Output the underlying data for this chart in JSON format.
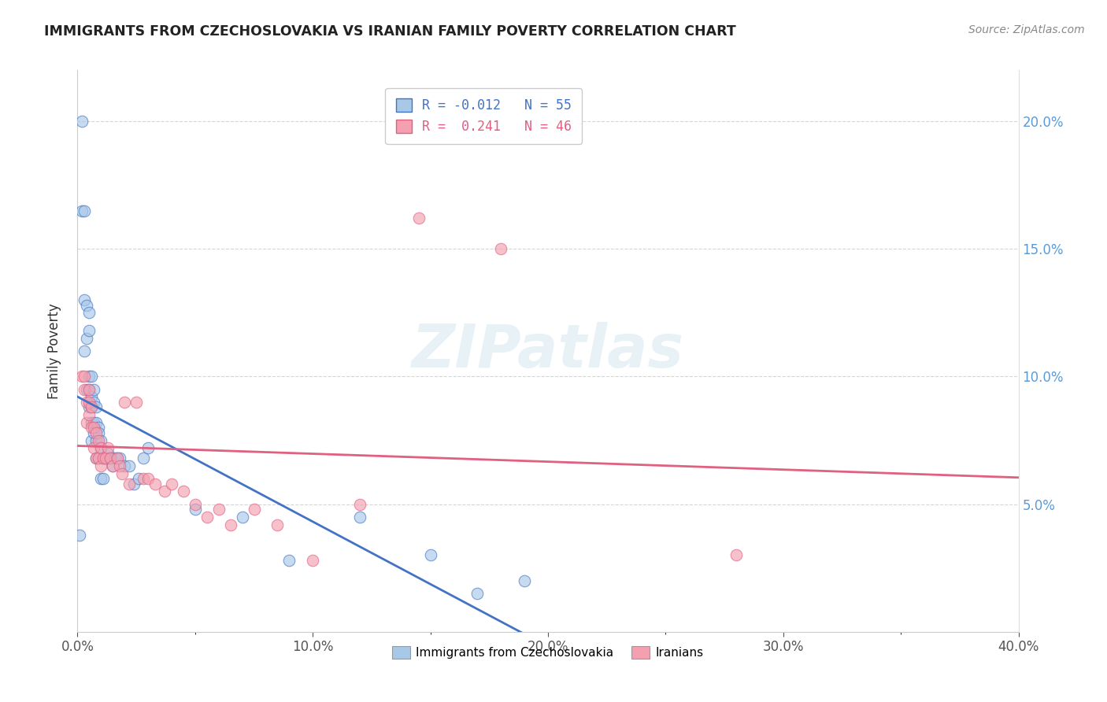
{
  "title": "IMMIGRANTS FROM CZECHOSLOVAKIA VS IRANIAN FAMILY POVERTY CORRELATION CHART",
  "source": "Source: ZipAtlas.com",
  "ylabel": "Family Poverty",
  "xlim": [
    0.0,
    0.4
  ],
  "ylim": [
    0.0,
    0.22
  ],
  "yticks": [
    0.05,
    0.1,
    0.15,
    0.2
  ],
  "ytick_labels": [
    "5.0%",
    "10.0%",
    "15.0%",
    "20.0%"
  ],
  "xticks": [
    0.0,
    0.1,
    0.2,
    0.3,
    0.4
  ],
  "xtick_labels": [
    "0.0%",
    "10.0%",
    "20.0%",
    "30.0%",
    "40.0%"
  ],
  "color_czech": "#a8c8e8",
  "color_iran": "#f4a0b0",
  "color_czech_line": "#4472c4",
  "color_iran_line": "#e06080",
  "color_right_axis": "#5b9bd5",
  "watermark": "ZIPatlas",
  "czech_scatter_x": [
    0.001,
    0.002,
    0.002,
    0.003,
    0.003,
    0.003,
    0.004,
    0.004,
    0.004,
    0.005,
    0.005,
    0.005,
    0.005,
    0.005,
    0.006,
    0.006,
    0.006,
    0.006,
    0.006,
    0.007,
    0.007,
    0.007,
    0.007,
    0.008,
    0.008,
    0.008,
    0.008,
    0.009,
    0.009,
    0.009,
    0.01,
    0.01,
    0.01,
    0.011,
    0.011,
    0.012,
    0.013,
    0.014,
    0.015,
    0.016,
    0.017,
    0.018,
    0.02,
    0.022,
    0.024,
    0.026,
    0.028,
    0.03,
    0.05,
    0.07,
    0.09,
    0.12,
    0.15,
    0.17,
    0.19
  ],
  "czech_scatter_y": [
    0.038,
    0.2,
    0.165,
    0.165,
    0.13,
    0.11,
    0.128,
    0.115,
    0.095,
    0.125,
    0.118,
    0.1,
    0.095,
    0.088,
    0.1,
    0.092,
    0.088,
    0.082,
    0.075,
    0.095,
    0.09,
    0.082,
    0.078,
    0.088,
    0.082,
    0.075,
    0.068,
    0.08,
    0.078,
    0.068,
    0.075,
    0.072,
    0.06,
    0.068,
    0.06,
    0.068,
    0.07,
    0.068,
    0.065,
    0.068,
    0.068,
    0.068,
    0.065,
    0.065,
    0.058,
    0.06,
    0.068,
    0.072,
    0.048,
    0.045,
    0.028,
    0.045,
    0.03,
    0.015,
    0.02
  ],
  "iran_scatter_x": [
    0.002,
    0.003,
    0.003,
    0.004,
    0.004,
    0.005,
    0.005,
    0.005,
    0.006,
    0.006,
    0.007,
    0.007,
    0.008,
    0.008,
    0.009,
    0.009,
    0.01,
    0.01,
    0.011,
    0.012,
    0.013,
    0.014,
    0.015,
    0.017,
    0.018,
    0.019,
    0.02,
    0.022,
    0.025,
    0.028,
    0.03,
    0.033,
    0.037,
    0.04,
    0.045,
    0.05,
    0.055,
    0.06,
    0.065,
    0.075,
    0.085,
    0.1,
    0.12,
    0.145,
    0.18,
    0.28
  ],
  "iran_scatter_y": [
    0.1,
    0.1,
    0.095,
    0.09,
    0.082,
    0.095,
    0.09,
    0.085,
    0.088,
    0.08,
    0.08,
    0.072,
    0.078,
    0.068,
    0.075,
    0.068,
    0.072,
    0.065,
    0.068,
    0.068,
    0.072,
    0.068,
    0.065,
    0.068,
    0.065,
    0.062,
    0.09,
    0.058,
    0.09,
    0.06,
    0.06,
    0.058,
    0.055,
    0.058,
    0.055,
    0.05,
    0.045,
    0.048,
    0.042,
    0.048,
    0.042,
    0.028,
    0.05,
    0.162,
    0.15,
    0.03
  ],
  "legend_items": [
    {
      "label": "R = -0.012   N = 55",
      "color": "#4472c4"
    },
    {
      "label": "R =  0.241   N = 46",
      "color": "#e06080"
    }
  ],
  "bottom_legend": [
    {
      "label": "Immigrants from Czechoslovakia",
      "color": "#a8c8e8"
    },
    {
      "label": "Iranians",
      "color": "#f4a0b0"
    }
  ]
}
